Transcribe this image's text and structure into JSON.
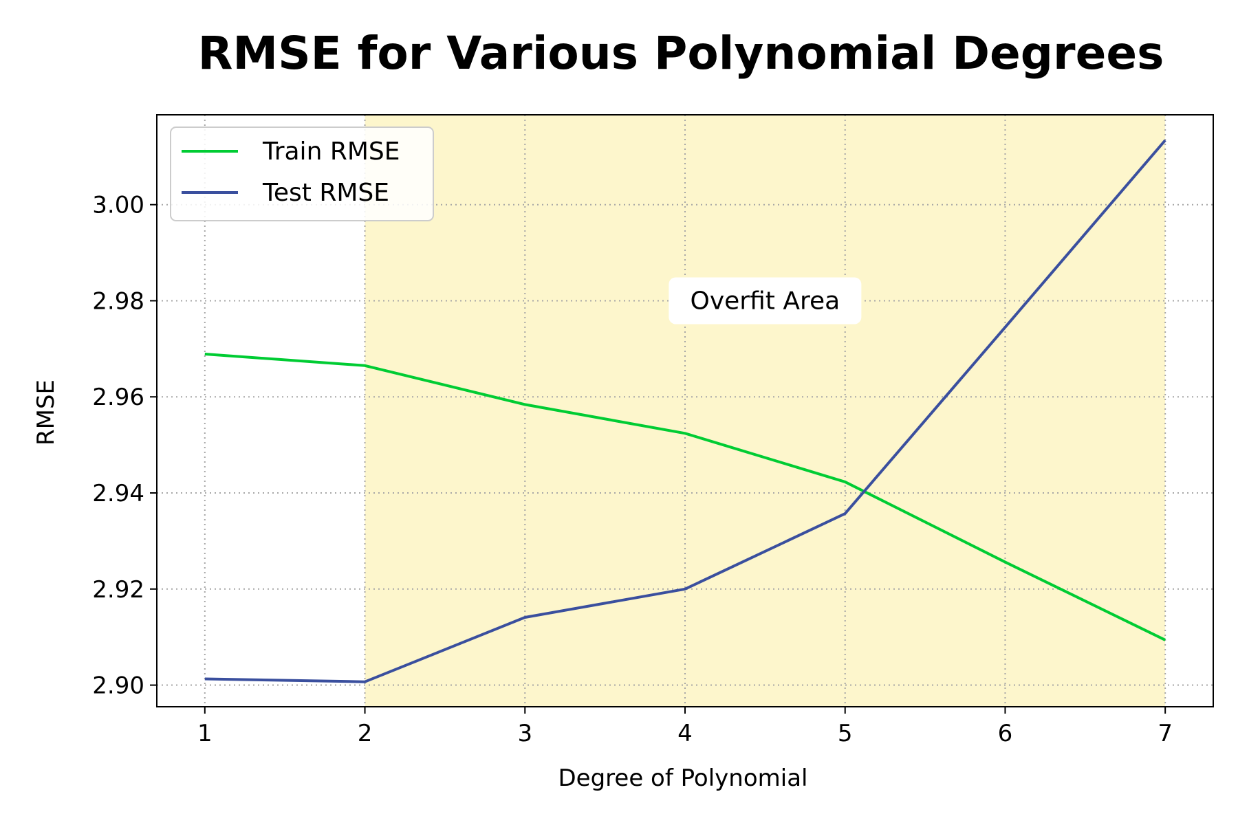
{
  "chart_data": {
    "type": "line",
    "title": "RMSE for Various Polynomial Degrees",
    "xlabel": "Degree of Polynomial",
    "ylabel": "RMSE",
    "x": [
      1,
      2,
      3,
      4,
      5,
      6,
      7
    ],
    "x_ticks": [
      "1",
      "2",
      "3",
      "4",
      "5",
      "6",
      "7"
    ],
    "y_ticks": [
      "2.90",
      "2.92",
      "2.94",
      "2.96",
      "2.98",
      "3.00"
    ],
    "xlim": [
      0.7,
      7.3
    ],
    "ylim": [
      2.8955,
      3.0187
    ],
    "grid": true,
    "legend_position": "top-left",
    "series": [
      {
        "name": "Train RMSE",
        "color": "#00cc33",
        "values": [
          2.9689,
          2.9665,
          2.9584,
          2.9524,
          2.9423,
          2.9256,
          2.9094
        ]
      },
      {
        "name": "Test RMSE",
        "color": "#3a4f9e",
        "values": [
          2.9013,
          2.9007,
          2.9141,
          2.92,
          2.9357,
          2.9745,
          3.0134
        ]
      }
    ],
    "shaded_region": {
      "x_start": 2,
      "x_end": 7,
      "color": "#fdf6cc"
    },
    "annotation": {
      "text": "Overfit Area",
      "x": 4.5,
      "y": 2.98
    }
  }
}
